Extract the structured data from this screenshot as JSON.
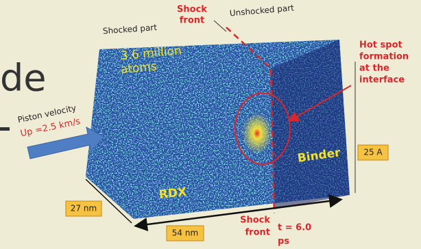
{
  "slide_text": "de",
  "labels": {
    "shock_front_top": [
      "Shock",
      "front"
    ],
    "shocked_part": "Shocked part",
    "unshocked_part": "Unshocked part",
    "atoms": [
      "3.6 million",
      "atoms"
    ],
    "hot_spot": [
      "Hot spot",
      "formation",
      "at the",
      "interface"
    ],
    "piston_velocity": "Piston velocity",
    "up": "Up =2.5 km/s",
    "height": "25 A",
    "binder": "Binder",
    "rdx": "RDX",
    "depth": "27 nm",
    "width": "54 nm",
    "shock_front_bottom": [
      "Shock",
      "front"
    ],
    "time": [
      "t = 6.0",
      "ps"
    ]
  }
}
